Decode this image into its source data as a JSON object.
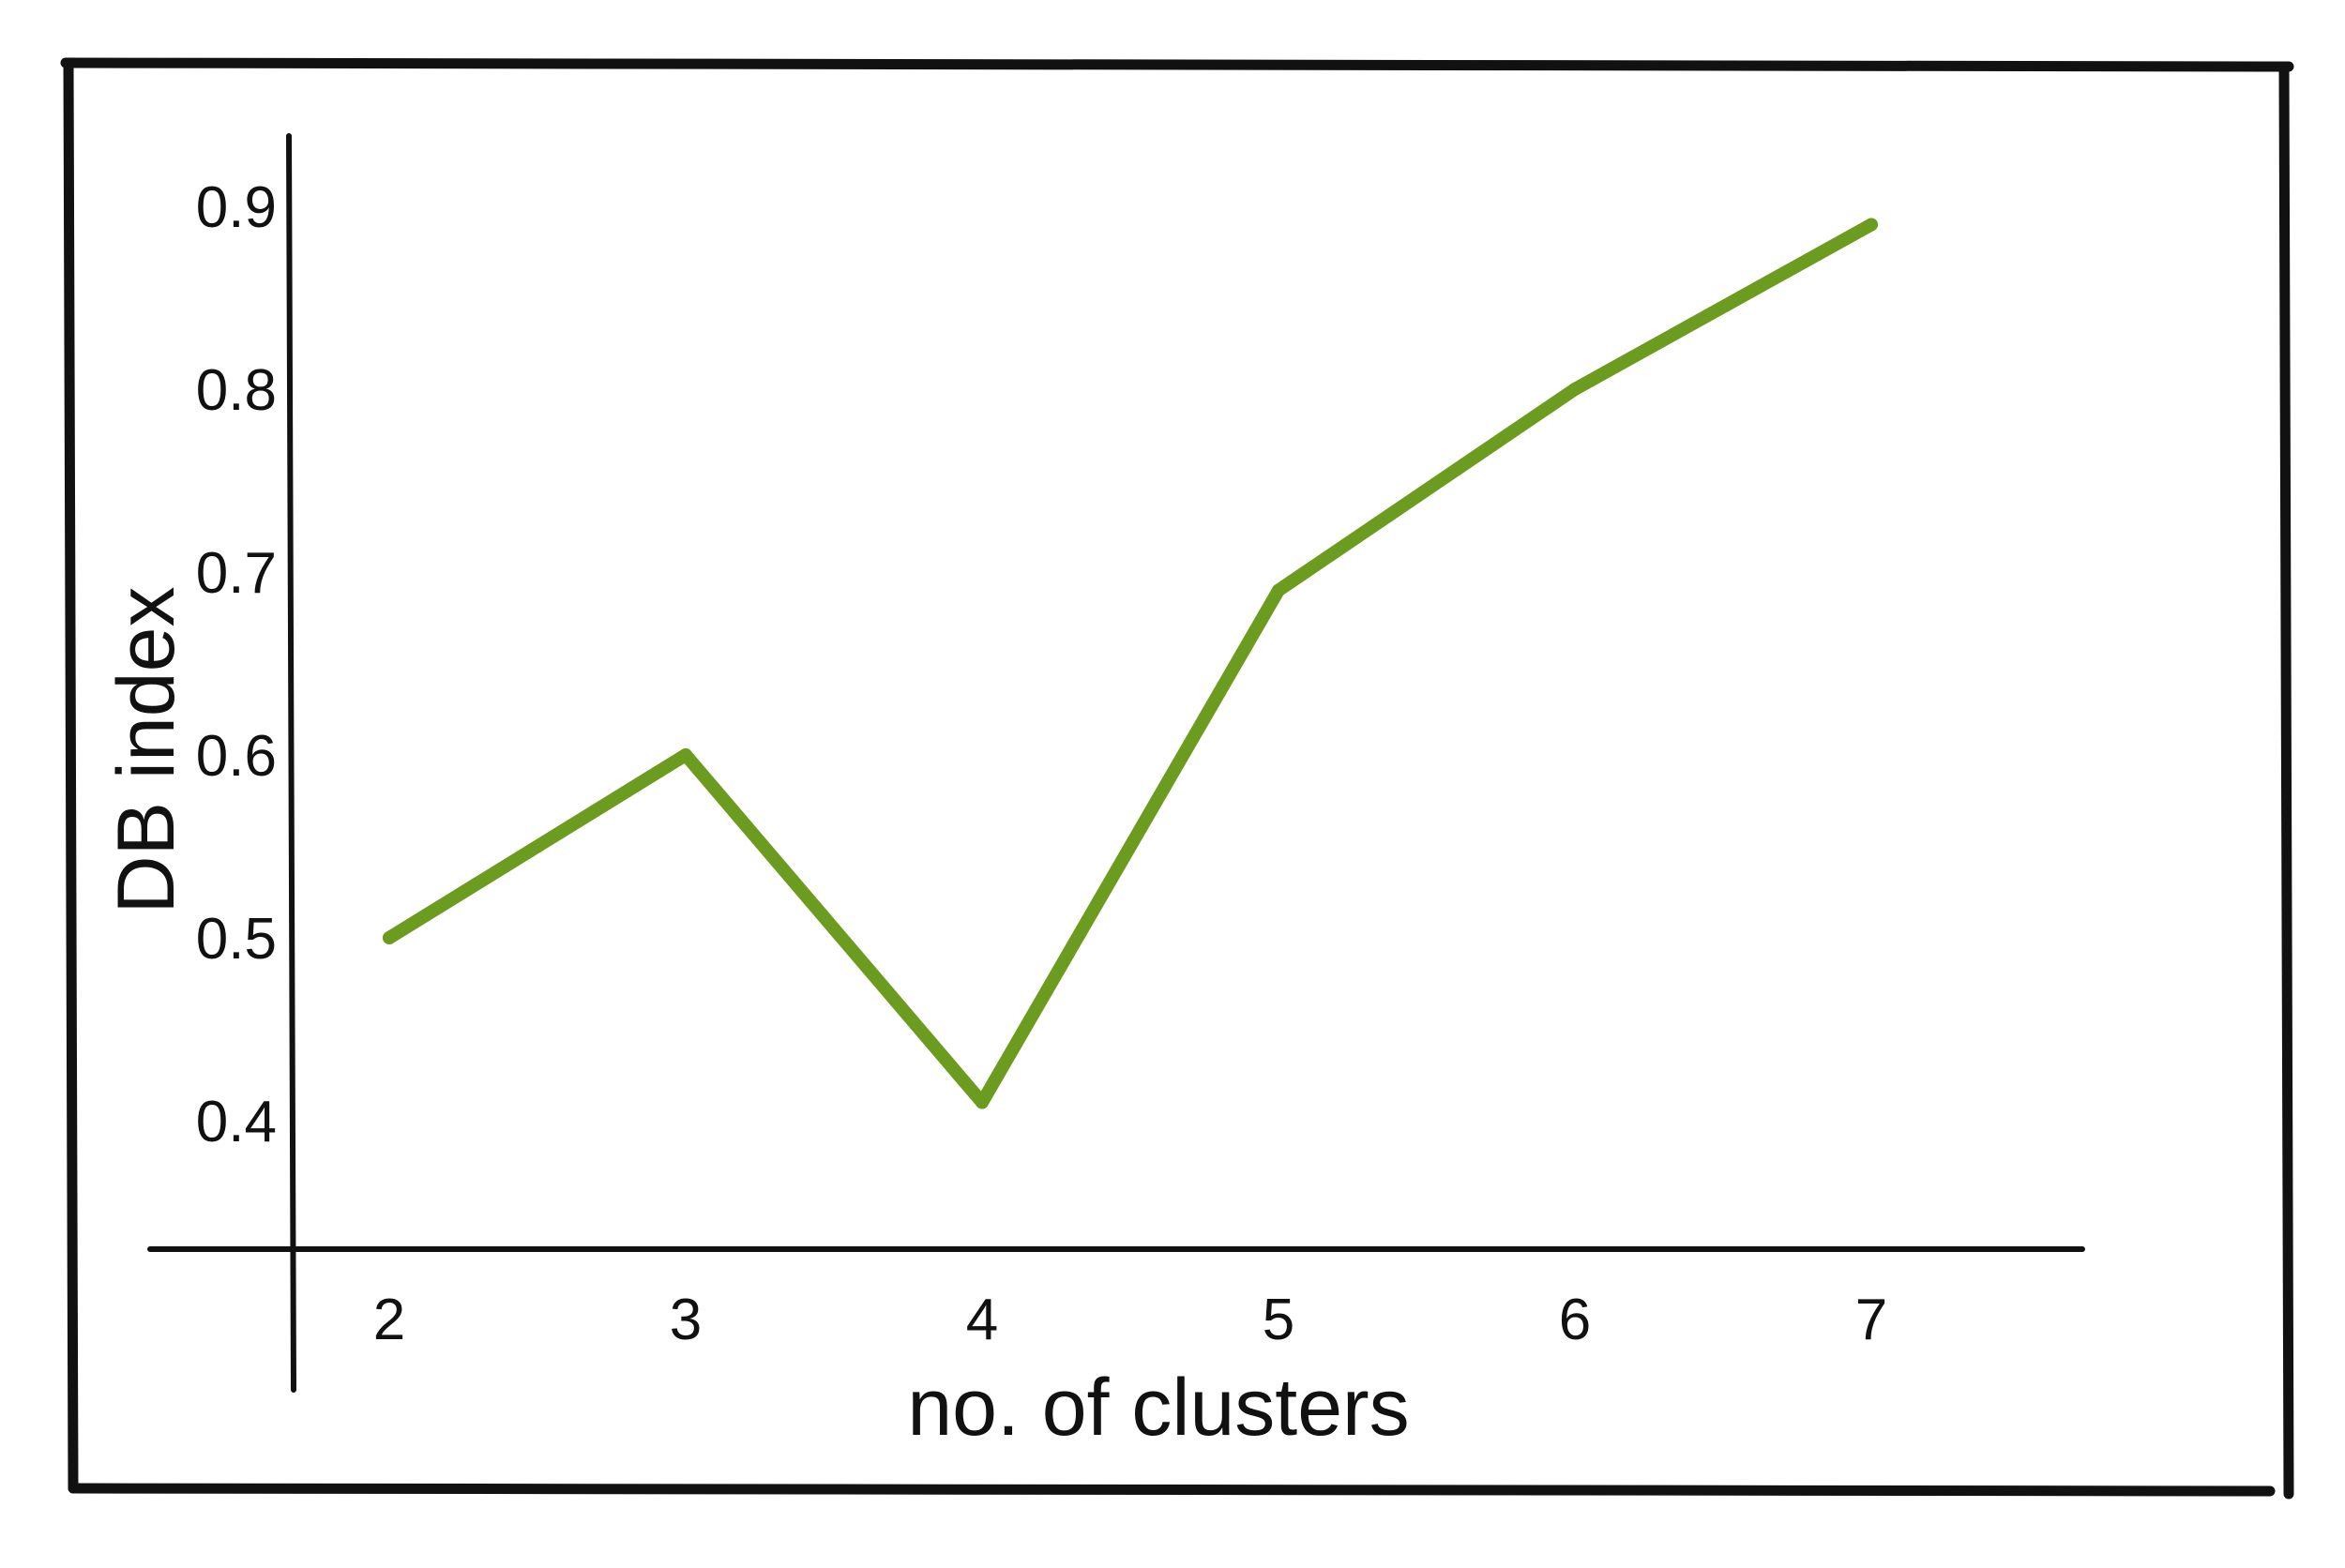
{
  "chart_data": {
    "type": "line",
    "title": "",
    "xlabel": "no. of clusters",
    "ylabel": "DB index",
    "x": [
      2,
      3,
      4,
      5,
      6,
      7
    ],
    "series": [
      {
        "values": [
          0.5,
          0.6,
          0.41,
          0.69,
          0.8,
          0.89
        ],
        "color": "#6b9c1f"
      }
    ],
    "x_tick_labels": [
      "2",
      "3",
      "4",
      "5",
      "6",
      "7"
    ],
    "y_tick_labels": [
      "0.4",
      "0.5",
      "0.6",
      "0.7",
      "0.8",
      "0.9"
    ],
    "y_ticks": [
      0.4,
      0.5,
      0.6,
      0.7,
      0.8,
      0.9
    ],
    "ylim": [
      0.4,
      0.9
    ],
    "grid": false,
    "legend": "none"
  },
  "colors": {
    "line": "#6b9c1f",
    "axes": "#111111",
    "frame": "#111111",
    "background": "#ffffff"
  }
}
